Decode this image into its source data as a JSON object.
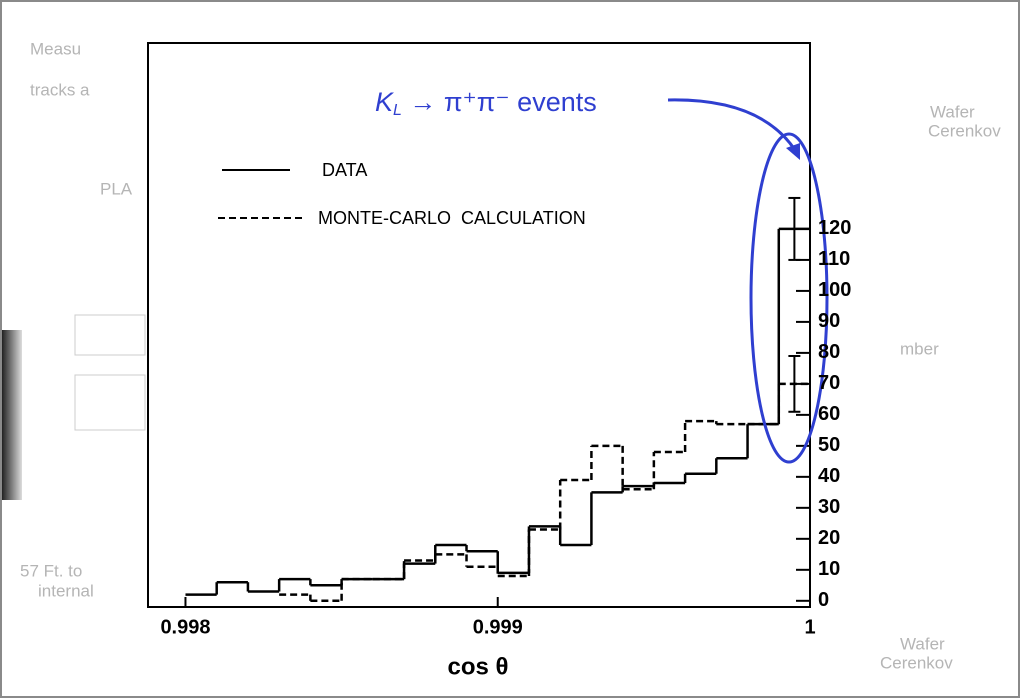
{
  "chart_data": {
    "type": "step-histogram",
    "x_label": "cos θ",
    "bins": [
      0.998,
      0.9981,
      0.9982,
      0.9983,
      0.9984,
      0.9985,
      0.9986,
      0.9987,
      0.9988,
      0.9989,
      0.999,
      0.9991,
      0.9992,
      0.9993,
      0.9994,
      0.9995,
      0.9996,
      0.9997,
      0.9998,
      0.9999,
      1
    ],
    "series": [
      {
        "name": "DATA",
        "color": "#000000",
        "dash": false,
        "values": [
          2,
          6,
          3,
          7,
          5,
          7,
          7,
          12,
          18,
          16,
          9,
          24,
          18,
          35,
          37,
          38,
          41,
          46,
          57,
          120
        ],
        "errors": [
          null,
          null,
          null,
          null,
          null,
          null,
          null,
          null,
          null,
          null,
          null,
          null,
          null,
          null,
          null,
          null,
          null,
          null,
          null,
          10
        ]
      },
      {
        "name": "MONTE-CARLO  CALCULATION",
        "color": "#000000",
        "dash": true,
        "values": [
          null,
          null,
          null,
          2,
          0,
          7,
          7,
          13,
          15,
          11,
          8,
          23,
          39,
          50,
          36,
          48,
          58,
          57,
          57,
          70
        ],
        "errors": [
          null,
          null,
          null,
          null,
          null,
          null,
          null,
          null,
          null,
          null,
          null,
          null,
          null,
          null,
          null,
          null,
          null,
          null,
          null,
          9
        ]
      }
    ],
    "xlim": [
      0.99788,
      1
    ],
    "xticks": [
      {
        "value": 0.998,
        "label": "0.998"
      },
      0.999,
      1
    ],
    "ylim": [
      -2,
      180
    ],
    "yticks": [
      0,
      10,
      20,
      30,
      40,
      50,
      60,
      70,
      80,
      90,
      100,
      110,
      120
    ],
    "annotation": {
      "base": "K",
      "sub": "L",
      "rest": " → π⁺π⁻ events",
      "color": "#2f3fd0"
    },
    "background_texts": [
      "Measu",
      "tracks a",
      "PLA",
      "Wafer",
      "Cerenkov",
      "mber",
      "57 Ft. to",
      "internal",
      "Wafer",
      "Cerenkov"
    ]
  }
}
